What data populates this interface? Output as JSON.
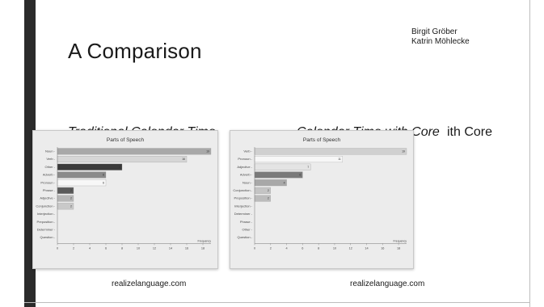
{
  "slide": {
    "title": "A Comparison",
    "authors": [
      "Birgit Gröber",
      "Katrin Möhlecke"
    ],
    "headings": {
      "left": "Traditional Calendar Time",
      "right": "Calendar Time with Core",
      "right_tail": "ith Core"
    },
    "sources": {
      "left": "realizelanguage.com",
      "right": "realizelanguage.com"
    }
  },
  "chart_data": [
    {
      "type": "bar",
      "orientation": "horizontal",
      "title": "Parts of Speech",
      "xlabel": "Frequency",
      "xlim": [
        0,
        19
      ],
      "x_ticks": [
        "0",
        "2",
        "4",
        "6",
        "8",
        "10",
        "12",
        "14",
        "16",
        "18"
      ],
      "categories": [
        "Noun",
        "Verb",
        "Other",
        "Adverb",
        "Pronoun",
        "Phrase",
        "Adjective",
        "Conjunction",
        "Interjection",
        "Preposition",
        "Determiner",
        "Question"
      ],
      "values": [
        19,
        16,
        8,
        6,
        6,
        2,
        2,
        2,
        0,
        0,
        0,
        0
      ],
      "bar_colors": [
        "#a8a8a8",
        "#d6d6d6",
        "#3a3a3a",
        "#8a8a8a",
        "#f7f7f7",
        "#5a5a5a",
        "#b6b6b6",
        "#c9c9c9",
        "#bbbbbb",
        "#bbbbbb",
        "#bbbbbb",
        "#bbbbbb"
      ],
      "grid": false
    },
    {
      "type": "bar",
      "orientation": "horizontal",
      "title": "Parts of Speech",
      "xlabel": "Frequency",
      "xlim": [
        0,
        19
      ],
      "x_ticks": [
        "0",
        "2",
        "4",
        "6",
        "8",
        "10",
        "12",
        "14",
        "16",
        "18"
      ],
      "categories": [
        "Verb",
        "Pronoun",
        "Adjective",
        "Adverb",
        "Noun",
        "Conjunction",
        "Preposition",
        "Interjection",
        "Determiner",
        "Phrase",
        "Other",
        "Question"
      ],
      "values": [
        19,
        11,
        7,
        6,
        4,
        2,
        2,
        0,
        0,
        0,
        0,
        0
      ],
      "bar_colors": [
        "#d0d0d0",
        "#f7f7f7",
        "#e4e4e4",
        "#7a7a7a",
        "#a8a8a8",
        "#c4c4c4",
        "#bcbcbc",
        "#bbbbbb",
        "#bbbbbb",
        "#bbbbbb",
        "#bbbbbb",
        "#bbbbbb"
      ],
      "grid": false
    }
  ]
}
